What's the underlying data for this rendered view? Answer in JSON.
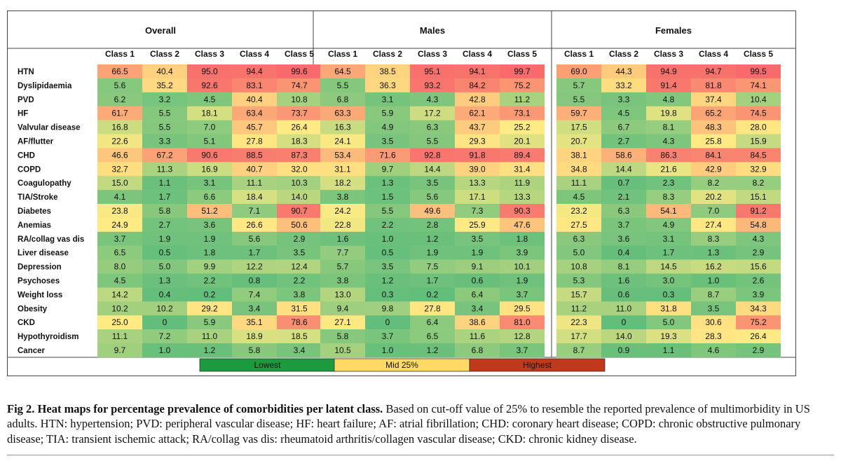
{
  "chart_data": {
    "type": "heatmap",
    "title": "Heat maps for percentage prevalence of comorbidities per latent class",
    "groups": [
      "Overall",
      "Males",
      "Females"
    ],
    "columns": [
      "Class 1",
      "Class 2",
      "Class 3",
      "Class 4",
      "Class 5"
    ],
    "rows": [
      "HTN",
      "Dyslipidaemia",
      "PVD",
      "HF",
      "Valvular disease",
      "AF/flutter",
      "CHD",
      "COPD",
      "Coagulopathy",
      "TIA/Stroke",
      "Diabetes",
      "Anemias",
      "RA/collag vas dis",
      "Liver disease",
      "Depression",
      "Psychoses",
      "Weight loss",
      "Obesity",
      "CKD",
      "Hypothyroidism",
      "Cancer"
    ],
    "values": {
      "Overall": [
        [
          "66.5",
          "40.4",
          "95.0",
          "94.4",
          "99.6"
        ],
        [
          "5.6",
          "35.2",
          "92.6",
          "83.1",
          "74.7"
        ],
        [
          "6.2",
          "3.2",
          "4.5",
          "40.4",
          "10.8"
        ],
        [
          "61.7",
          "5.5",
          "18.1",
          "63.4",
          "73.7"
        ],
        [
          "16.8",
          "5.5",
          "7.0",
          "45.7",
          "26.4"
        ],
        [
          "22.6",
          "3.3",
          "5.1",
          "27.8",
          "18.3"
        ],
        [
          "46.6",
          "67.2",
          "90.6",
          "88.5",
          "87.3"
        ],
        [
          "32.7",
          "11.3",
          "16.9",
          "40.7",
          "32.0"
        ],
        [
          "15.0",
          "1.1",
          "3.1",
          "11.1",
          "10.3"
        ],
        [
          "4.1",
          "1.7",
          "6.6",
          "18.4",
          "14.0"
        ],
        [
          "23.8",
          "5.8",
          "51.2",
          "7.1",
          "90.7"
        ],
        [
          "24.9",
          "2.7",
          "3.6",
          "26.6",
          "50.6"
        ],
        [
          "3.7",
          "1.9",
          "1.9",
          "5.6",
          "2.9"
        ],
        [
          "6.5",
          "0.5",
          "1.8",
          "1.7",
          "3.5"
        ],
        [
          "8.0",
          "5.0",
          "9.9",
          "12.2",
          "12.4"
        ],
        [
          "4.5",
          "1.3",
          "2.2",
          "0.8",
          "2.2"
        ],
        [
          "14.2",
          "0.4",
          "0.2",
          "7.4",
          "3.8"
        ],
        [
          "10.2",
          "10.2",
          "29.2",
          "3.4",
          "31.5"
        ],
        [
          "25.0",
          "0",
          "5.9",
          "35.1",
          "78.6"
        ],
        [
          "11.1",
          "7.2",
          "11.0",
          "18.9",
          "18.5"
        ],
        [
          "9.7",
          "1.0",
          "1.2",
          "5.8",
          "3.4"
        ]
      ],
      "Males": [
        [
          "64.5",
          "38.5",
          "95.1",
          "94.1",
          "99.7"
        ],
        [
          "5.5",
          "36.3",
          "93.2",
          "84.2",
          "75.2"
        ],
        [
          "6.8",
          "3.1",
          "4.3",
          "42.8",
          "11.2"
        ],
        [
          "63.3",
          "5.9",
          "17.2",
          "62.1",
          "73.1"
        ],
        [
          "16.3",
          "4.9",
          "6.3",
          "43.7",
          "25.2"
        ],
        [
          "24.1",
          "3.5",
          "5.5",
          "29.3",
          "20.1"
        ],
        [
          "53.4",
          "71.6",
          "92.8",
          "91.8",
          "89.4"
        ],
        [
          "31.1",
          "9.7",
          "14.4",
          "39.0",
          "31.4"
        ],
        [
          "18.2",
          "1.3",
          "3.5",
          "13.3",
          "11.9"
        ],
        [
          "3.8",
          "1.5",
          "5.6",
          "17.1",
          "13.3"
        ],
        [
          "24.2",
          "5.5",
          "49.6",
          "7.3",
          "90.3"
        ],
        [
          "22.8",
          "2.2",
          "2.8",
          "25.9",
          "47.6"
        ],
        [
          "1.6",
          "1.0",
          "1.2",
          "3.5",
          "1.8"
        ],
        [
          "7.7",
          "0.5",
          "1.9",
          "1.9",
          "3.9"
        ],
        [
          "5.7",
          "3.5",
          "7.5",
          "9.1",
          "10.1"
        ],
        [
          "3.8",
          "1.2",
          "1.7",
          "0.6",
          "1.9"
        ],
        [
          "13.0",
          "0.3",
          "0.2",
          "6.4",
          "3.7"
        ],
        [
          "9.4",
          "9.8",
          "27.8",
          "3.4",
          "29.5"
        ],
        [
          "27.1",
          "0",
          "6.4",
          "38.6",
          "81.0"
        ],
        [
          "5.8",
          "3.7",
          "6.5",
          "11.6",
          "12.8"
        ],
        [
          "10.5",
          "1.0",
          "1.2",
          "6.8",
          "3.7"
        ]
      ],
      "Females": [
        [
          "69.0",
          "44.3",
          "94.9",
          "94.7",
          "99.5"
        ],
        [
          "5.7",
          "33.2",
          "91.4",
          "81.8",
          "74.1"
        ],
        [
          "5.5",
          "3.3",
          "4.8",
          "37.4",
          "10.4"
        ],
        [
          "59.7",
          "4.5",
          "19.8",
          "65.2",
          "74.5"
        ],
        [
          "17.5",
          "6.7",
          "8.1",
          "48.3",
          "28.0"
        ],
        [
          "20.7",
          "2.7",
          "4.3",
          "25.8",
          "15.9"
        ],
        [
          "38.1",
          "58.6",
          "86.3",
          "84.1",
          "84.5"
        ],
        [
          "34.8",
          "14.4",
          "21.6",
          "42.9",
          "32.9"
        ],
        [
          "11.1",
          "0.7",
          "2.3",
          "8.2",
          "8.2"
        ],
        [
          "4.5",
          "2.1",
          "8.3",
          "20.2",
          "15.1"
        ],
        [
          "23.2",
          "6.3",
          "54.1",
          "7.0",
          "91.2"
        ],
        [
          "27.5",
          "3.7",
          "4.9",
          "27.4",
          "54.8"
        ],
        [
          "6.3",
          "3.6",
          "3.1",
          "8.3",
          "4.3"
        ],
        [
          "5.0",
          "0.4",
          "1.7",
          "1.3",
          "2.9"
        ],
        [
          "10.8",
          "8.1",
          "14.5",
          "16.2",
          "15.6"
        ],
        [
          "5.3",
          "1.6",
          "3.0",
          "1.0",
          "2.6"
        ],
        [
          "15.7",
          "0.6",
          "0.3",
          "8.7",
          "3.9"
        ],
        [
          "11.2",
          "11.0",
          "31.8",
          "3.5",
          "34.3"
        ],
        [
          "22.3",
          "0",
          "5.0",
          "30.6",
          "75.2"
        ],
        [
          "17.7",
          "14.0",
          "19.3",
          "28.3",
          "26.4"
        ],
        [
          "8.7",
          "0.9",
          "1.1",
          "4.6",
          "2.9"
        ]
      ]
    },
    "color_scale": {
      "low": "#63be7b",
      "mid": "#ffeb84",
      "high": "#f8696b",
      "mid_value": 25,
      "max_value": 100
    },
    "legend": [
      {
        "label": "Lowest",
        "color": "#1e9a3e"
      },
      {
        "label": "Mid 25%",
        "color": "#ffd966"
      },
      {
        "label": "Highest",
        "color": "#c0391b"
      }
    ]
  },
  "caption": {
    "bold": "Fig 2. Heat maps for percentage prevalence of comorbidities per latent class.",
    "text": " Based on cut-off value of 25% to resemble the reported prevalence of multimorbidity in US adults. HTN: hypertension; PVD: peripheral vascular disease; HF: heart failure; AF: atrial fibrillation; CHD: coronary heart disease; COPD: chronic obstructive pulmonary disease; TIA: transient ischemic attack; RA/collag vas dis: rheumatoid arthritis/collagen vascular disease; CKD: chronic kidney disease."
  }
}
